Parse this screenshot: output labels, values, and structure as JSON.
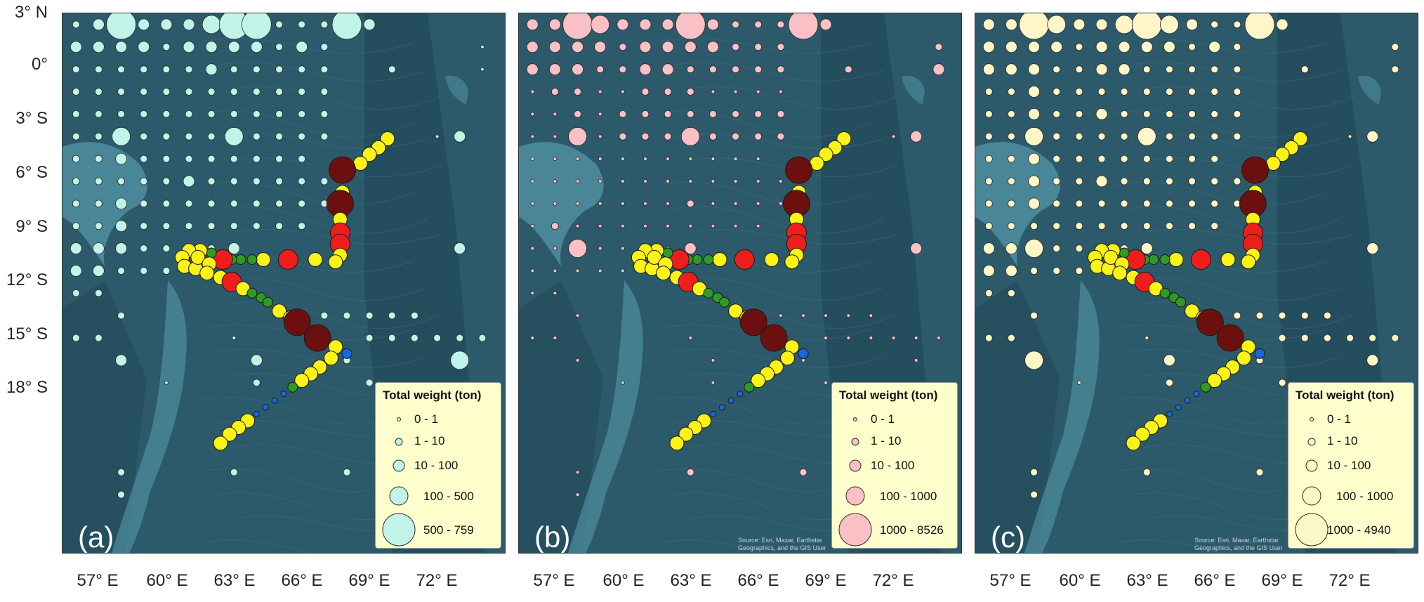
{
  "axes": {
    "lat_labels": [
      "3° N",
      "0°",
      "3° S",
      "6° S",
      "9° S",
      "12° S",
      "15° S",
      "18° S"
    ],
    "lon_labels": [
      "57° E",
      "60° E",
      "63° E",
      "66° E",
      "69° E",
      "72° E"
    ]
  },
  "map_extent": {
    "lon": [
      54.9,
      74.5
    ],
    "lat": [
      -21.1,
      3.0
    ]
  },
  "panels": [
    {
      "letter": "(a)",
      "fill": "#c2f3e8",
      "legend_title": "Total weight (ton)",
      "classes": [
        "0 - 1",
        "1 - 10",
        "10 - 100",
        "100 - 500",
        "500 - 759"
      ]
    },
    {
      "letter": "(b)",
      "fill": "#f9c0c6",
      "legend_title": "Total weight (ton)",
      "classes": [
        "0 - 1",
        "1 - 10",
        "10 - 100",
        "100 - 1000",
        "1000 - 8526"
      ],
      "credit": "Source: Esri, Maxar, Earthstar Geographics, and the GIS User Community"
    },
    {
      "letter": "(c)",
      "fill": "#fdf6c8",
      "legend_title": "Total weight (ton)",
      "classes": [
        "0 - 1",
        "1 - 10",
        "10 - 100",
        "100 - 1000",
        "1000 - 4940"
      ],
      "credit": "Source: Esri, Maxar, Earthstar Geographics, and the GIS User Community"
    }
  ],
  "colors": {
    "ocean": "#2c5a6a",
    "ocean_deep": "#1f4656",
    "bank": "#4f8ea0",
    "fleet_dark": "#6b0f0f",
    "fleet_red": "#f01d1d",
    "fleet_yellow": "#fbf218",
    "fleet_green": "#2f9a26",
    "fleet_blue": "#1668e0"
  },
  "fleet_track": {
    "note_legend": "",
    "points": [
      {
        "lon": 69.3,
        "lat": -2.6,
        "c": "yellow",
        "s": 2
      },
      {
        "lon": 68.9,
        "lat": -3.0,
        "c": "yellow",
        "s": 2
      },
      {
        "lon": 68.5,
        "lat": -3.3,
        "c": "yellow",
        "s": 2
      },
      {
        "lon": 68.1,
        "lat": -3.7,
        "c": "yellow",
        "s": 2
      },
      {
        "lon": 67.3,
        "lat": -4.0,
        "c": "dark",
        "s": 4
      },
      {
        "lon": 67.3,
        "lat": -5.0,
        "c": "yellow",
        "s": 2
      },
      {
        "lon": 67.2,
        "lat": -5.5,
        "c": "dark",
        "s": 4
      },
      {
        "lon": 67.2,
        "lat": -6.2,
        "c": "yellow",
        "s": 2
      },
      {
        "lon": 67.2,
        "lat": -6.8,
        "c": "red",
        "s": 3
      },
      {
        "lon": 67.2,
        "lat": -7.3,
        "c": "red",
        "s": 3
      },
      {
        "lon": 67.2,
        "lat": -7.8,
        "c": "yellow",
        "s": 2
      },
      {
        "lon": 67.0,
        "lat": -8.1,
        "c": "yellow",
        "s": 2
      },
      {
        "lon": 66.1,
        "lat": -8.0,
        "c": "yellow",
        "s": 2
      },
      {
        "lon": 64.9,
        "lat": -8.0,
        "c": "red",
        "s": 3
      },
      {
        "lon": 63.8,
        "lat": -8.0,
        "c": "yellow",
        "s": 2
      },
      {
        "lon": 63.3,
        "lat": -8.0,
        "c": "green",
        "s": 1
      },
      {
        "lon": 62.8,
        "lat": -8.0,
        "c": "green",
        "s": 1
      },
      {
        "lon": 62.4,
        "lat": -8.0,
        "c": "green",
        "s": 1
      },
      {
        "lon": 62.0,
        "lat": -8.0,
        "c": "red",
        "s": 3
      },
      {
        "lon": 61.5,
        "lat": -7.7,
        "c": "green",
        "s": 1
      },
      {
        "lon": 61.0,
        "lat": -7.6,
        "c": "yellow",
        "s": 2
      },
      {
        "lon": 60.5,
        "lat": -7.6,
        "c": "yellow",
        "s": 2
      },
      {
        "lon": 60.2,
        "lat": -7.9,
        "c": "yellow",
        "s": 2
      },
      {
        "lon": 60.3,
        "lat": -8.3,
        "c": "yellow",
        "s": 2
      },
      {
        "lon": 60.8,
        "lat": -8.4,
        "c": "yellow",
        "s": 2
      },
      {
        "lon": 60.9,
        "lat": -7.9,
        "c": "yellow",
        "s": 2
      },
      {
        "lon": 61.4,
        "lat": -8.2,
        "c": "yellow",
        "s": 2
      },
      {
        "lon": 61.3,
        "lat": -8.6,
        "c": "yellow",
        "s": 2
      },
      {
        "lon": 61.9,
        "lat": -8.8,
        "c": "yellow",
        "s": 2
      },
      {
        "lon": 62.4,
        "lat": -9.0,
        "c": "red",
        "s": 3
      },
      {
        "lon": 62.9,
        "lat": -9.3,
        "c": "yellow",
        "s": 2
      },
      {
        "lon": 63.3,
        "lat": -9.5,
        "c": "green",
        "s": 1
      },
      {
        "lon": 63.7,
        "lat": -9.7,
        "c": "green",
        "s": 1
      },
      {
        "lon": 64.0,
        "lat": -9.9,
        "c": "green",
        "s": 1
      },
      {
        "lon": 64.5,
        "lat": -10.3,
        "c": "yellow",
        "s": 2
      },
      {
        "lon": 65.0,
        "lat": -10.6,
        "c": "yellow",
        "s": 2
      },
      {
        "lon": 65.3,
        "lat": -10.8,
        "c": "dark",
        "s": 4
      },
      {
        "lon": 66.2,
        "lat": -11.5,
        "c": "dark",
        "s": 4
      },
      {
        "lon": 67.0,
        "lat": -11.9,
        "c": "yellow",
        "s": 2
      },
      {
        "lon": 67.5,
        "lat": -12.2,
        "c": "blue",
        "s": 1
      },
      {
        "lon": 66.8,
        "lat": -12.4,
        "c": "yellow",
        "s": 2
      },
      {
        "lon": 66.3,
        "lat": -12.8,
        "c": "yellow",
        "s": 2
      },
      {
        "lon": 65.9,
        "lat": -13.1,
        "c": "yellow",
        "s": 2
      },
      {
        "lon": 65.5,
        "lat": -13.4,
        "c": "yellow",
        "s": 2
      },
      {
        "lon": 65.1,
        "lat": -13.7,
        "c": "green",
        "s": 1
      },
      {
        "lon": 64.7,
        "lat": -14.0,
        "c": "blue",
        "s": 0
      },
      {
        "lon": 64.3,
        "lat": -14.3,
        "c": "blue",
        "s": 0
      },
      {
        "lon": 63.9,
        "lat": -14.6,
        "c": "blue",
        "s": 0
      },
      {
        "lon": 63.5,
        "lat": -14.9,
        "c": "blue",
        "s": 0
      },
      {
        "lon": 63.1,
        "lat": -15.2,
        "c": "yellow",
        "s": 2
      },
      {
        "lon": 62.7,
        "lat": -15.5,
        "c": "yellow",
        "s": 2
      },
      {
        "lon": 62.3,
        "lat": -15.8,
        "c": "yellow",
        "s": 2
      },
      {
        "lon": 61.9,
        "lat": -16.2,
        "c": "yellow",
        "s": 2
      }
    ]
  },
  "catch_grid": {
    "rows": [
      {
        "lat": 2.5,
        "lons": [
          55.5,
          56.5,
          57.5,
          58.5,
          59.5,
          60.5,
          61.5,
          62.5,
          63.5,
          64.5,
          65.5,
          66.5,
          67.5,
          68.5
        ],
        "a": [
          1,
          2,
          4,
          2,
          2,
          2,
          3,
          4,
          4,
          1,
          1,
          1,
          4,
          2
        ],
        "b": [
          2,
          2,
          4,
          3,
          2,
          2,
          2,
          4,
          2,
          1,
          1,
          1,
          4,
          2
        ],
        "c": [
          2,
          2,
          4,
          3,
          2,
          2,
          3,
          4,
          3,
          2,
          1,
          1,
          4,
          2
        ]
      },
      {
        "lat": 1.5,
        "lons": [
          55.5,
          56.5,
          57.5,
          58.5,
          59.5,
          60.5,
          61.5,
          62.5,
          63.5,
          64.5,
          65.5,
          66.5,
          73.5
        ],
        "a": [
          2,
          2,
          2,
          2,
          1,
          2,
          2,
          2,
          2,
          1,
          2,
          1,
          0
        ],
        "b": [
          2,
          2,
          2,
          2,
          1,
          2,
          2,
          2,
          2,
          1,
          1,
          1,
          1
        ],
        "c": [
          2,
          2,
          2,
          2,
          1,
          2,
          2,
          2,
          2,
          1,
          2,
          1,
          1
        ]
      },
      {
        "lat": 0.5,
        "lons": [
          55.5,
          56.5,
          57.5,
          58.5,
          59.5,
          60.5,
          61.5,
          62.5,
          63.5,
          64.5,
          65.5,
          66.5,
          69.5,
          73.5
        ],
        "a": [
          1,
          1,
          1,
          1,
          1,
          1,
          2,
          1,
          1,
          1,
          1,
          1,
          1,
          0
        ],
        "b": [
          2,
          2,
          2,
          1,
          1,
          2,
          2,
          1,
          1,
          1,
          1,
          1,
          1,
          2
        ],
        "c": [
          2,
          2,
          2,
          1,
          1,
          2,
          2,
          1,
          1,
          1,
          1,
          1,
          1,
          1
        ]
      },
      {
        "lat": -0.5,
        "lons": [
          55.5,
          56.5,
          57.5,
          58.5,
          59.5,
          60.5,
          61.5,
          62.5,
          63.5,
          64.5,
          65.5,
          66.5
        ],
        "a": [
          1,
          1,
          1,
          1,
          1,
          1,
          1,
          1,
          1,
          1,
          1,
          1
        ],
        "b": [
          0,
          1,
          1,
          0,
          0,
          1,
          1,
          1,
          0,
          0,
          0,
          0
        ],
        "c": [
          1,
          1,
          2,
          1,
          1,
          1,
          1,
          1,
          1,
          1,
          1,
          1
        ]
      },
      {
        "lat": -1.5,
        "lons": [
          55.5,
          56.5,
          57.5,
          58.5,
          59.5,
          60.5,
          61.5,
          62.5,
          63.5,
          64.5,
          65.5,
          66.5
        ],
        "a": [
          1,
          1,
          1,
          1,
          1,
          1,
          1,
          1,
          1,
          1,
          1,
          1
        ],
        "b": [
          0,
          0,
          1,
          0,
          1,
          1,
          1,
          1,
          1,
          1,
          1,
          1
        ],
        "c": [
          1,
          1,
          2,
          1,
          1,
          2,
          1,
          1,
          1,
          1,
          1,
          1
        ]
      },
      {
        "lat": -2.5,
        "lons": [
          55.5,
          56.5,
          57.5,
          58.5,
          59.5,
          60.5,
          61.5,
          62.5,
          63.5,
          64.5,
          65.5,
          66.5,
          71.5,
          72.5
        ],
        "a": [
          1,
          1,
          3,
          1,
          1,
          1,
          1,
          3,
          1,
          1,
          1,
          1,
          0,
          2
        ],
        "b": [
          0,
          0,
          3,
          0,
          1,
          1,
          1,
          3,
          1,
          1,
          1,
          1,
          0,
          2
        ],
        "c": [
          1,
          1,
          3,
          1,
          1,
          1,
          1,
          3,
          1,
          1,
          1,
          1,
          0,
          2
        ]
      },
      {
        "lat": -3.5,
        "lons": [
          55.5,
          56.5,
          57.5,
          58.5,
          59.5,
          60.5,
          61.5,
          62.5,
          63.5,
          64.5,
          65.5
        ],
        "a": [
          1,
          1,
          2,
          1,
          1,
          1,
          1,
          1,
          1,
          1,
          1
        ],
        "b": [
          0,
          0,
          0,
          0,
          0,
          0,
          0,
          0,
          0,
          0,
          0
        ],
        "c": [
          1,
          1,
          2,
          1,
          1,
          1,
          1,
          1,
          1,
          1,
          1
        ]
      },
      {
        "lat": -4.5,
        "lons": [
          55.5,
          56.5,
          57.5,
          58.5,
          59.5,
          60.5,
          61.5,
          62.5,
          63.5,
          64.5,
          65.5,
          66.5
        ],
        "a": [
          1,
          1,
          1,
          1,
          1,
          2,
          1,
          1,
          1,
          1,
          1,
          1
        ],
        "b": [
          0,
          0,
          0,
          0,
          0,
          0,
          0,
          0,
          0,
          0,
          0,
          0
        ],
        "c": [
          1,
          1,
          2,
          1,
          1,
          2,
          1,
          1,
          1,
          1,
          1,
          1
        ]
      },
      {
        "lat": -5.5,
        "lons": [
          55.5,
          56.5,
          57.5,
          58.5,
          59.5,
          60.5,
          61.5,
          62.5,
          63.5,
          64.5,
          65.5,
          66.5
        ],
        "a": [
          1,
          1,
          2,
          1,
          1,
          1,
          1,
          1,
          1,
          1,
          1,
          1
        ],
        "b": [
          0,
          0,
          0,
          0,
          0,
          0,
          0,
          1,
          0,
          0,
          0,
          0
        ],
        "c": [
          1,
          1,
          2,
          1,
          1,
          1,
          1,
          1,
          1,
          1,
          1,
          1
        ]
      },
      {
        "lat": -6.5,
        "lons": [
          55.5,
          56.5,
          57.5,
          58.5,
          59.5,
          60.5,
          61.5,
          62.5,
          63.5,
          64.5,
          65.5
        ],
        "a": [
          1,
          1,
          2,
          1,
          1,
          1,
          1,
          1,
          1,
          1,
          1
        ],
        "b": [
          0,
          1,
          0,
          0,
          0,
          0,
          0,
          0,
          0,
          0,
          0
        ],
        "c": [
          1,
          1,
          1,
          1,
          1,
          1,
          1,
          1,
          1,
          1,
          1
        ]
      },
      {
        "lat": -7.5,
        "lons": [
          55.5,
          56.5,
          57.5,
          58.5,
          59.5,
          60.5,
          61.5,
          62.5,
          72.5
        ],
        "a": [
          2,
          2,
          2,
          1,
          1,
          1,
          1,
          2,
          2
        ],
        "b": [
          0,
          0,
          3,
          0,
          0,
          0,
          0,
          2,
          2
        ],
        "c": [
          2,
          2,
          3,
          1,
          1,
          1,
          1,
          2,
          2
        ]
      },
      {
        "lat": -8.5,
        "lons": [
          55.5,
          56.5,
          57.5,
          58.5,
          59.5
        ],
        "a": [
          2,
          2,
          1,
          1,
          1
        ],
        "b": [
          0,
          0,
          0,
          0,
          0
        ],
        "c": [
          2,
          2,
          1,
          1,
          1
        ]
      },
      {
        "lat": -9.5,
        "lons": [
          55.5,
          56.5
        ],
        "a": [
          1,
          1
        ],
        "b": [
          0,
          0
        ],
        "c": [
          1,
          1
        ]
      },
      {
        "lat": -10.5,
        "lons": [
          57.5,
          66.5,
          67.5,
          68.5,
          69.5,
          70.5
        ],
        "a": [
          1,
          1,
          1,
          1,
          1,
          1
        ],
        "b": [
          0,
          0,
          0,
          0,
          0,
          0
        ],
        "c": [
          1,
          1,
          1,
          1,
          1,
          1
        ]
      },
      {
        "lat": -11.5,
        "lons": [
          55.5,
          56.5,
          62.5,
          68.5,
          69.5,
          70.5,
          71.5,
          72.5,
          73.5
        ],
        "a": [
          1,
          1,
          0,
          1,
          1,
          1,
          1,
          1,
          1
        ],
        "b": [
          0,
          0,
          0,
          0,
          0,
          0,
          0,
          0,
          0
        ],
        "c": [
          1,
          1,
          0,
          1,
          1,
          1,
          1,
          1,
          1
        ]
      },
      {
        "lat": -12.5,
        "lons": [
          57.5,
          63.5,
          67.5,
          72.5
        ],
        "a": [
          2,
          2,
          1,
          3
        ],
        "b": [
          0,
          0,
          0,
          0
        ],
        "c": [
          3,
          2,
          1,
          2
        ]
      },
      {
        "lat": -13.5,
        "lons": [
          59.5,
          63.5,
          68.5
        ],
        "a": [
          0,
          1,
          1
        ],
        "b": [
          0,
          0,
          0
        ],
        "c": [
          0,
          1,
          1
        ]
      },
      {
        "lat": -17.5,
        "lons": [
          57.5,
          62.5,
          67.5
        ],
        "a": [
          1,
          1,
          1
        ],
        "b": [
          0,
          1,
          1
        ],
        "c": [
          1,
          1,
          1
        ]
      },
      {
        "lat": -18.5,
        "lons": [
          57.5
        ],
        "a": [
          1
        ],
        "b": [
          0
        ],
        "c": [
          1
        ]
      }
    ]
  }
}
